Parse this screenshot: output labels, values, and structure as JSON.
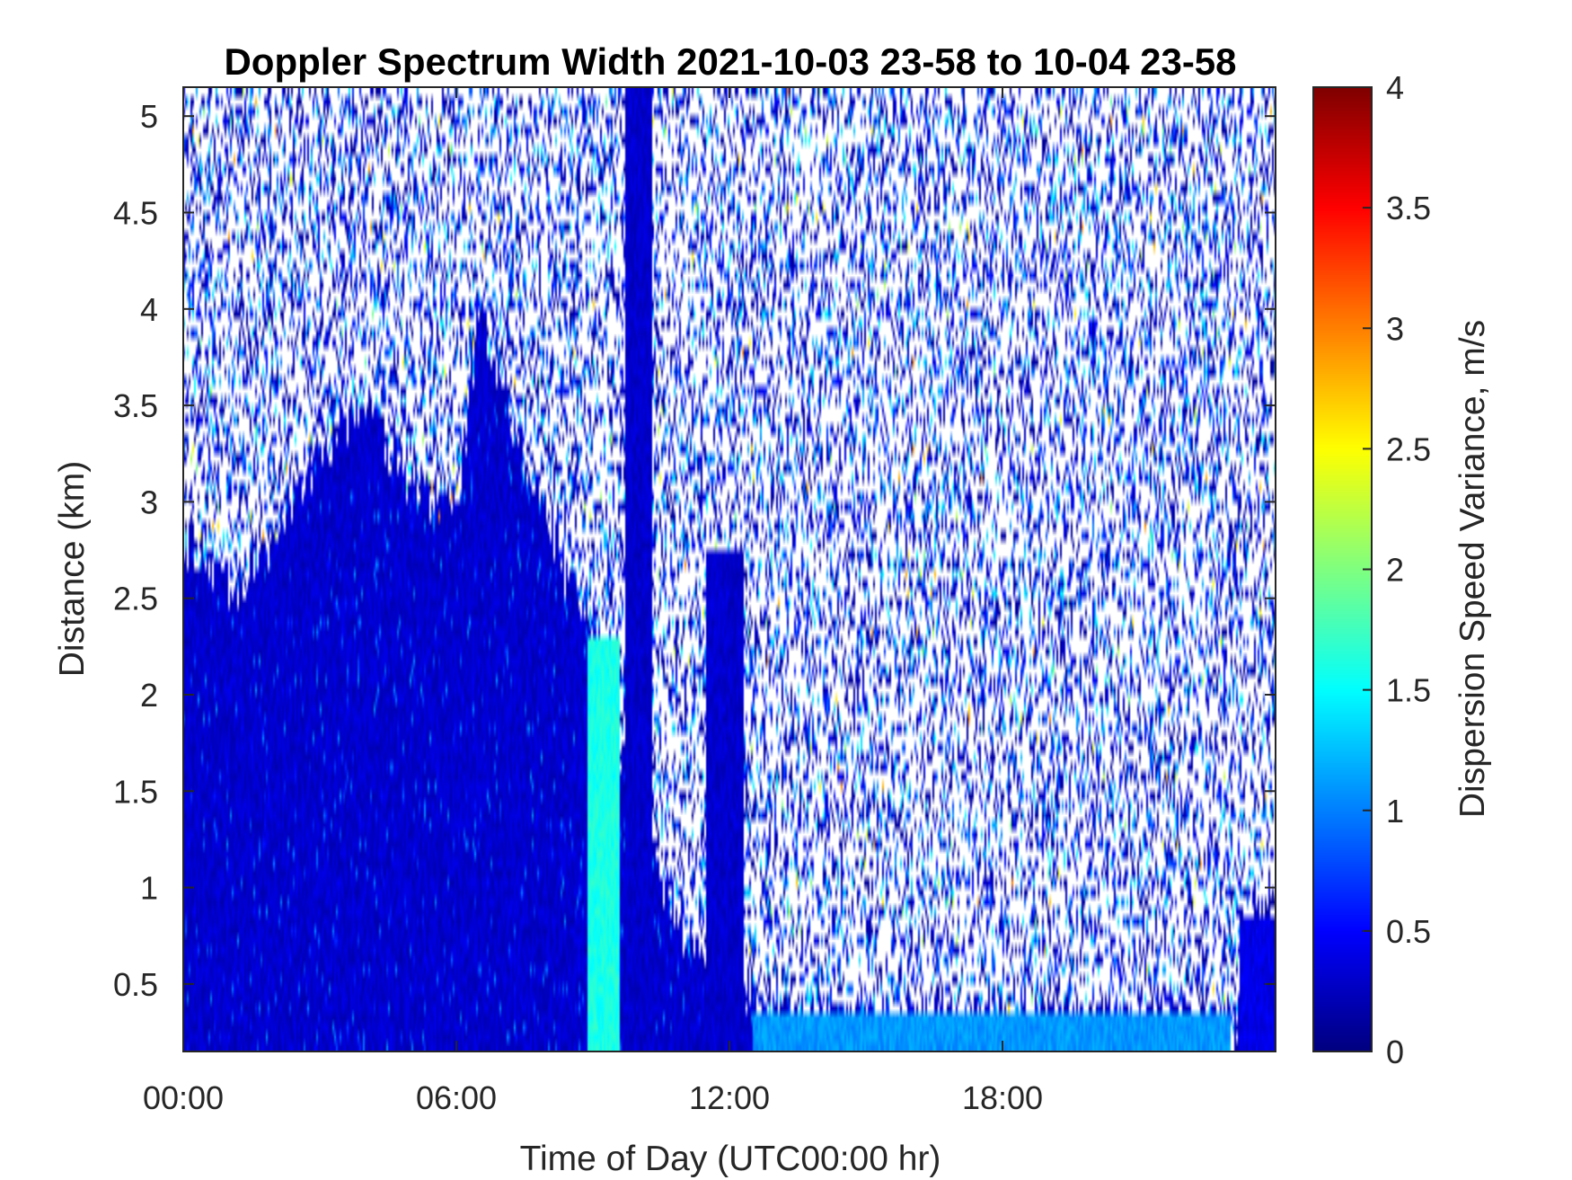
{
  "chart_data": {
    "type": "heatmap",
    "title": "Doppler Spectrum Width 2021-10-03 23-58 to 10-04 23-58",
    "xlabel": "Time of Day (UTC00:00 hr)",
    "ylabel": "Distance (km)",
    "xlim_hours": [
      0,
      24
    ],
    "ylim": [
      0.15,
      5.15
    ],
    "x_ticks": [
      {
        "value": 0,
        "label": "00:00"
      },
      {
        "value": 6,
        "label": "06:00"
      },
      {
        "value": 12,
        "label": "12:00"
      },
      {
        "value": 18,
        "label": "18:00"
      }
    ],
    "y_ticks": [
      {
        "value": 0.5,
        "label": "0.5"
      },
      {
        "value": 1,
        "label": "1"
      },
      {
        "value": 1.5,
        "label": "1.5"
      },
      {
        "value": 2,
        "label": "2"
      },
      {
        "value": 2.5,
        "label": "2.5"
      },
      {
        "value": 3,
        "label": "3"
      },
      {
        "value": 3.5,
        "label": "3.5"
      },
      {
        "value": 4,
        "label": "4"
      },
      {
        "value": 4.5,
        "label": "4.5"
      },
      {
        "value": 5,
        "label": "5"
      }
    ],
    "colorbar": {
      "label": "Dispersion Speed Variance, m/s",
      "colormap": "jet",
      "range": [
        0,
        4
      ],
      "ticks": [
        {
          "value": 0,
          "label": "0"
        },
        {
          "value": 0.5,
          "label": "0.5"
        },
        {
          "value": 1,
          "label": "1"
        },
        {
          "value": 1.5,
          "label": "1.5"
        },
        {
          "value": 2,
          "label": "2"
        },
        {
          "value": 2.5,
          "label": "2.5"
        },
        {
          "value": 3,
          "label": "3"
        },
        {
          "value": 3.5,
          "label": "3.5"
        },
        {
          "value": 4,
          "label": "4"
        }
      ]
    },
    "grid": false,
    "dense_region_top_km": [
      {
        "t": 0,
        "top": 2.85
      },
      {
        "t": 1,
        "top": 2.55
      },
      {
        "t": 2,
        "top": 2.8
      },
      {
        "t": 3,
        "top": 3.3
      },
      {
        "t": 4,
        "top": 3.5
      },
      {
        "t": 5,
        "top": 3.1
      },
      {
        "t": 6,
        "top": 2.9
      },
      {
        "t": 6.5,
        "top": 4.0
      },
      {
        "t": 7.5,
        "top": 3.2
      },
      {
        "t": 8.5,
        "top": 2.6
      },
      {
        "t": 9,
        "top": 2.4
      },
      {
        "t": 10,
        "top": 1.3
      },
      {
        "t": 11,
        "top": 0.8
      },
      {
        "t": 12,
        "top": 0.5
      },
      {
        "t": 13,
        "top": 0.3
      },
      {
        "t": 24,
        "top": 0.3
      }
    ],
    "features": [
      {
        "description_value": "surface layer value ~1.1 m/s from 12:30 to 23:00",
        "t_start": 12.5,
        "t_end": 23.0,
        "z_top": 0.35,
        "value": 1.1
      },
      {
        "t_start": 8.9,
        "t_end": 9.6,
        "z_top": 2.3,
        "value": 1.6
      },
      {
        "t_start": 9.7,
        "t_end": 10.3,
        "z_top": 5.15,
        "value": 0.3
      },
      {
        "t_start": 11.5,
        "t_end": 12.3,
        "z_top": 2.75,
        "value": 0.3
      },
      {
        "t_start": 23.2,
        "t_end": 24.0,
        "z_top": 0.85,
        "value": 0.4
      }
    ],
    "typical_values": {
      "dense_region": 0.3,
      "sparse_noise_range": [
        0.1,
        1.5
      ]
    }
  }
}
